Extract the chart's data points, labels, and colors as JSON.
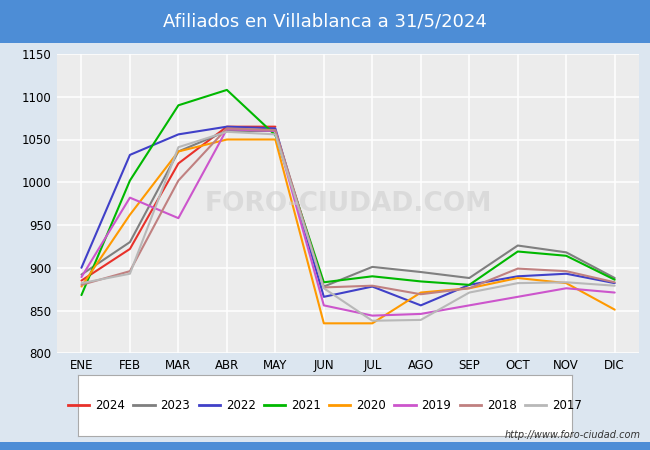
{
  "title": "Afiliados en Villablanca a 31/5/2024",
  "title_bg_color": "#4d8dd6",
  "title_text_color": "white",
  "months": [
    "ENE",
    "FEB",
    "MAR",
    "ABR",
    "MAY",
    "JUN",
    "JUL",
    "AGO",
    "SEP",
    "OCT",
    "NOV",
    "DIC"
  ],
  "ylim": [
    800,
    1150
  ],
  "yticks": [
    800,
    850,
    900,
    950,
    1000,
    1050,
    1100,
    1150
  ],
  "series_order": [
    "2024",
    "2023",
    "2022",
    "2021",
    "2020",
    "2019",
    "2018",
    "2017"
  ],
  "series": {
    "2024": {
      "color": "#e8312a",
      "data": [
        885,
        922,
        1022,
        1065,
        1065,
        null,
        null,
        null,
        null,
        null,
        null,
        null
      ]
    },
    "2023": {
      "color": "#7f7f7f",
      "data": [
        892,
        930,
        1036,
        1060,
        1060,
        878,
        901,
        895,
        888,
        926,
        918,
        888
      ]
    },
    "2022": {
      "color": "#4040c8",
      "data": [
        900,
        1032,
        1056,
        1065,
        1063,
        866,
        878,
        856,
        880,
        890,
        893,
        882
      ]
    },
    "2021": {
      "color": "#00b800",
      "data": [
        868,
        1002,
        1090,
        1108,
        1055,
        883,
        890,
        884,
        880,
        919,
        914,
        886
      ]
    },
    "2020": {
      "color": "#ff9900",
      "data": [
        878,
        962,
        1036,
        1050,
        1050,
        835,
        835,
        871,
        876,
        888,
        882,
        851
      ]
    },
    "2019": {
      "color": "#cc55cc",
      "data": [
        889,
        982,
        958,
        1062,
        1060,
        856,
        844,
        846,
        856,
        866,
        876,
        871
      ]
    },
    "2018": {
      "color": "#c08080",
      "data": [
        880,
        896,
        1002,
        1063,
        1061,
        877,
        879,
        869,
        876,
        899,
        896,
        883
      ]
    },
    "2017": {
      "color": "#b8b8b8",
      "data": [
        882,
        893,
        1041,
        1059,
        1056,
        876,
        838,
        839,
        871,
        882,
        883,
        879
      ]
    }
  },
  "watermark": "FORO-CIUDAD.COM",
  "url": "http://www.foro-ciudad.com",
  "fig_bg_color": "#dce6f0",
  "plot_bg_color": "#ececec",
  "grid_color": "white",
  "bottom_bg_color": "#dce6f0"
}
